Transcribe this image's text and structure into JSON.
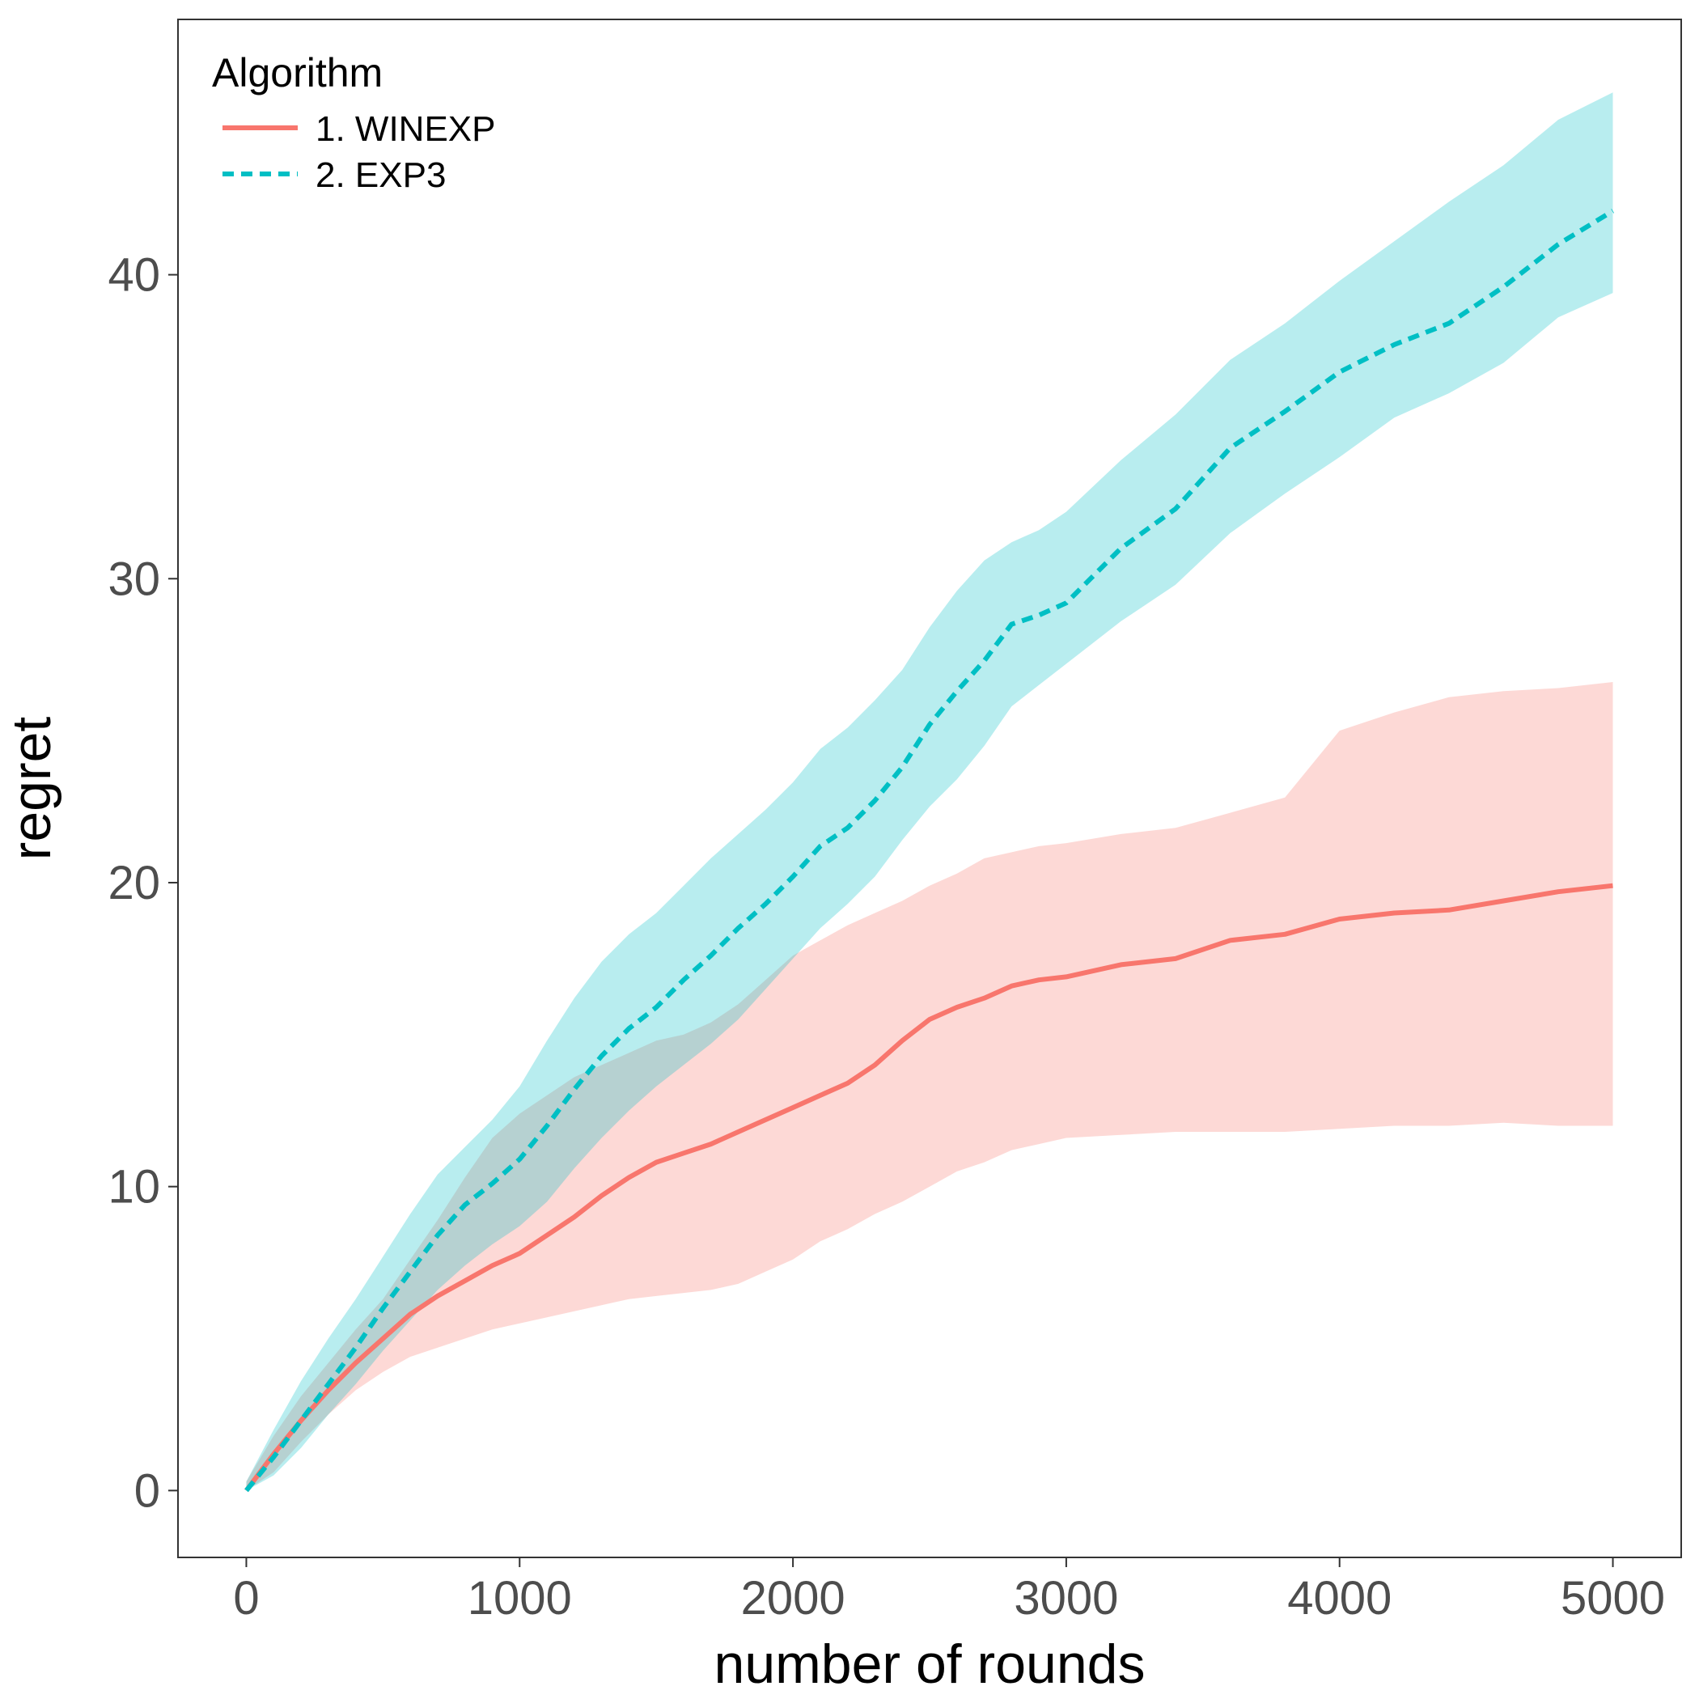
{
  "chart_data": {
    "type": "line",
    "title": "",
    "xlabel": "number of rounds",
    "ylabel": "regret",
    "xlim": [
      -250,
      5250
    ],
    "ylim": [
      -2.2,
      48.4
    ],
    "x_ticks": [
      0,
      1000,
      2000,
      3000,
      4000,
      5000
    ],
    "y_ticks": [
      0,
      10,
      20,
      30,
      40
    ],
    "grid": false,
    "legend": {
      "title": "Algorithm",
      "position": "top-left"
    },
    "series": [
      {
        "name": "1. WINEXP",
        "color": "#F8766D",
        "line_style": "solid",
        "x": [
          0,
          100,
          200,
          300,
          400,
          500,
          600,
          700,
          800,
          900,
          1000,
          1100,
          1200,
          1300,
          1400,
          1500,
          1600,
          1700,
          1800,
          1900,
          2000,
          2100,
          2200,
          2300,
          2400,
          2500,
          2600,
          2700,
          2800,
          2900,
          3000,
          3200,
          3400,
          3600,
          3800,
          4000,
          4200,
          4400,
          4600,
          4800,
          5000
        ],
        "y": [
          0,
          1.2,
          2.3,
          3.3,
          4.2,
          5.0,
          5.8,
          6.4,
          6.9,
          7.4,
          7.8,
          8.4,
          9.0,
          9.7,
          10.3,
          10.8,
          11.1,
          11.4,
          11.8,
          12.2,
          12.6,
          13.0,
          13.4,
          14.0,
          14.8,
          15.5,
          15.9,
          16.2,
          16.6,
          16.8,
          16.9,
          17.3,
          17.5,
          18.1,
          18.3,
          18.8,
          19.0,
          19.1,
          19.4,
          19.7,
          19.9
        ],
        "lower": [
          0,
          0.6,
          1.6,
          2.5,
          3.3,
          3.9,
          4.4,
          4.7,
          5.0,
          5.3,
          5.5,
          5.7,
          5.9,
          6.1,
          6.3,
          6.4,
          6.5,
          6.6,
          6.8,
          7.2,
          7.6,
          8.2,
          8.6,
          9.1,
          9.5,
          10.0,
          10.5,
          10.8,
          11.2,
          11.4,
          11.6,
          11.7,
          11.8,
          11.8,
          11.8,
          11.9,
          12.0,
          12.0,
          12.1,
          12.0,
          12.0
        ],
        "upper": [
          0.3,
          1.8,
          3.1,
          4.2,
          5.3,
          6.3,
          7.6,
          8.9,
          10.3,
          11.6,
          12.4,
          13.0,
          13.6,
          14.0,
          14.4,
          14.8,
          15.0,
          15.4,
          16.0,
          16.8,
          17.6,
          18.1,
          18.6,
          19.0,
          19.4,
          19.9,
          20.3,
          20.8,
          21.0,
          21.2,
          21.3,
          21.6,
          21.8,
          22.3,
          22.8,
          25.0,
          25.6,
          26.1,
          26.3,
          26.4,
          26.6
        ]
      },
      {
        "name": "2. EXP3",
        "color": "#00BFC4",
        "line_style": "dashed",
        "x": [
          0,
          100,
          200,
          300,
          400,
          500,
          600,
          700,
          800,
          900,
          1000,
          1100,
          1200,
          1300,
          1400,
          1500,
          1600,
          1700,
          1800,
          1900,
          2000,
          2100,
          2200,
          2300,
          2400,
          2500,
          2600,
          2700,
          2800,
          2900,
          3000,
          3200,
          3400,
          3600,
          3800,
          4000,
          4200,
          4400,
          4600,
          4800,
          5000
        ],
        "y": [
          0,
          1.1,
          2.3,
          3.5,
          4.7,
          6.0,
          7.2,
          8.4,
          9.4,
          10.1,
          10.9,
          12.0,
          13.2,
          14.3,
          15.2,
          15.9,
          16.8,
          17.6,
          18.5,
          19.3,
          20.2,
          21.2,
          21.8,
          22.7,
          23.8,
          25.2,
          26.3,
          27.3,
          28.5,
          28.8,
          29.2,
          31.0,
          32.3,
          34.3,
          35.5,
          36.8,
          37.7,
          38.4,
          39.6,
          41.0,
          42.1
        ],
        "lower": [
          0,
          0.5,
          1.4,
          2.5,
          3.5,
          4.6,
          5.6,
          6.6,
          7.4,
          8.1,
          8.7,
          9.5,
          10.6,
          11.6,
          12.5,
          13.3,
          14.0,
          14.7,
          15.5,
          16.5,
          17.5,
          18.5,
          19.3,
          20.2,
          21.4,
          22.5,
          23.4,
          24.5,
          25.8,
          26.5,
          27.2,
          28.6,
          29.8,
          31.5,
          32.8,
          34.0,
          35.3,
          36.1,
          37.1,
          38.6,
          39.4
        ],
        "upper": [
          0.3,
          2.0,
          3.6,
          5.0,
          6.3,
          7.7,
          9.1,
          10.4,
          11.3,
          12.2,
          13.3,
          14.8,
          16.2,
          17.4,
          18.3,
          19.0,
          19.9,
          20.8,
          21.6,
          22.4,
          23.3,
          24.4,
          25.1,
          26.0,
          27.0,
          28.4,
          29.6,
          30.6,
          31.2,
          31.6,
          32.2,
          33.9,
          35.4,
          37.2,
          38.4,
          39.8,
          41.1,
          42.4,
          43.6,
          45.1,
          46.0
        ]
      }
    ]
  }
}
